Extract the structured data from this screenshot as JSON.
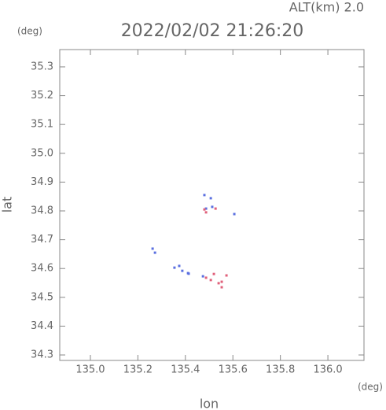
{
  "chart_data": {
    "type": "scatter",
    "title": "2022/02/02 21:26:20",
    "subtitle": "ALT(km) 2.0",
    "y_unit": "(deg)",
    "x_unit": "(deg)",
    "xlabel": "lon",
    "ylabel": "lat",
    "xlim": [
      134.871,
      136.152
    ],
    "ylim": [
      34.281,
      35.36
    ],
    "xticks": [
      {
        "value": 135,
        "label": "135.0"
      },
      135.2,
      135.4,
      135.6,
      135.8,
      {
        "value": 136,
        "label": "136.0"
      }
    ],
    "yticks": [
      34.3,
      34.4,
      34.5,
      34.6,
      34.7,
      34.8,
      34.9,
      {
        "value": 35,
        "label": "35.0"
      },
      35.1,
      35.2,
      35.3
    ],
    "series": [
      {
        "color": "#5a6fe0",
        "x": [
          135.262,
          135.272,
          135.354,
          135.374,
          135.387,
          135.411,
          135.414,
          135.474,
          135.487,
          135.513,
          135.507,
          135.606,
          135.48
        ],
        "values": [
          34.669,
          34.655,
          34.603,
          34.609,
          34.592,
          34.584,
          34.582,
          34.573,
          34.808,
          34.814,
          34.844,
          34.789,
          34.855
        ]
      },
      {
        "color": "#e0607a",
        "x": [
          135.48,
          135.487,
          135.487,
          135.507,
          135.52,
          135.54,
          135.553,
          135.573,
          135.553,
          135.527
        ],
        "values": [
          34.805,
          34.795,
          34.568,
          34.56,
          34.581,
          34.549,
          34.554,
          34.576,
          34.535,
          34.808
        ]
      }
    ]
  }
}
